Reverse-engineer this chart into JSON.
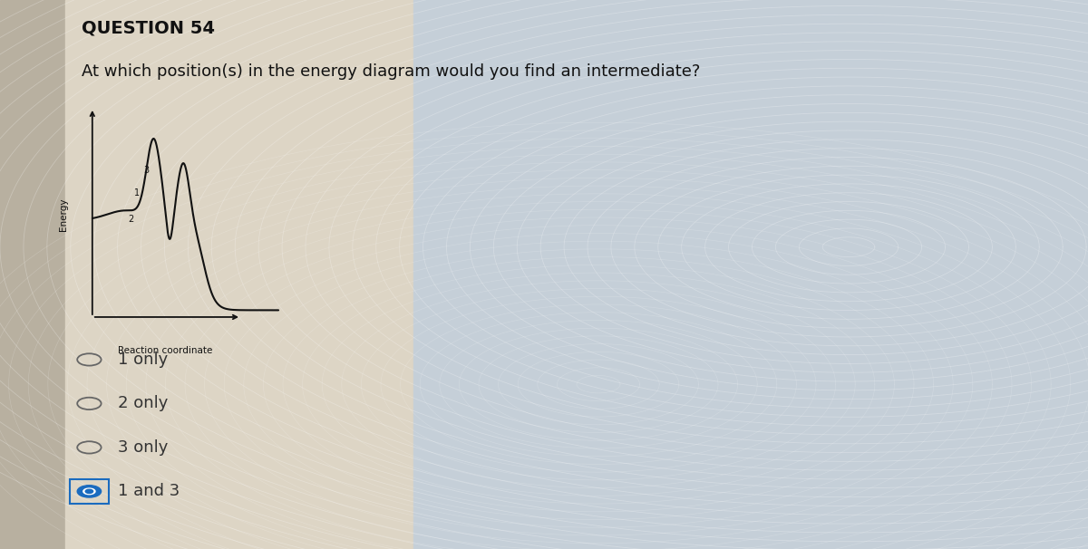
{
  "title": "QUESTION 54",
  "question": "At which position(s) in the energy diagram would you find an intermediate?",
  "bg_color_left": "#ddd8cc",
  "bg_color_right": "#c8d4e0",
  "plot_bg": "none",
  "xlabel": "Reaction coordinate",
  "ylabel": "Energy",
  "options": [
    "1 only",
    "2 only",
    "3 only",
    "1 and 3"
  ],
  "selected_option": 3,
  "selected_color": "#1a6bbf",
  "option_text_color": "#333333",
  "curve_color": "#111111",
  "axis_color": "#111111",
  "label1": "1",
  "label2": "2",
  "label3": "3",
  "title_fontsize": 14,
  "question_fontsize": 13,
  "option_fontsize": 13
}
